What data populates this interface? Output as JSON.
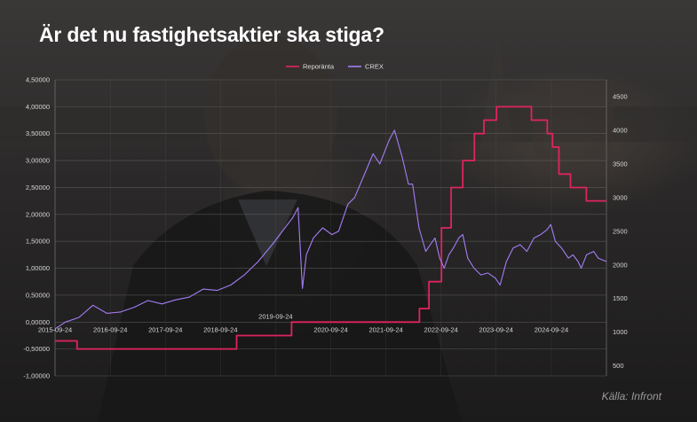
{
  "title": "Är det nu fastighetsaktier ska stiga?",
  "source": "Källa: Infront",
  "colors": {
    "background": "#1f1d1e",
    "repo": "#e0245e",
    "crex": "#a37ef5",
    "grid": "#6c6c6c",
    "text": "#ffffff"
  },
  "chart_data": {
    "type": "line",
    "legend_position": "top-center",
    "grid": true,
    "x_tick_labels": [
      "2015-09-24",
      "2016-09-24",
      "2017-09-24",
      "2018-09-24",
      "2019-09-24",
      "2020-09-24",
      "2021-09-24",
      "2022-09-24",
      "2023-09-24",
      "2024-09-24"
    ],
    "x_range": [
      "2015-09-24",
      "2025-09-24"
    ],
    "y_left": {
      "range": [
        -1.0,
        4.5
      ],
      "ticks": [
        "-1,00000",
        "-0,50000",
        "0,00000",
        "0,50000",
        "1,00000",
        "1,50000",
        "2,00000",
        "2,50000",
        "3,00000",
        "3,50000",
        "4,00000",
        "4,50000"
      ]
    },
    "y_right": {
      "range": [
        350,
        4750
      ],
      "ticks": [
        "500",
        "1000",
        "1500",
        "2000",
        "2500",
        "3000",
        "3500",
        "4000",
        "4500"
      ]
    },
    "series": [
      {
        "name": "Reporänta",
        "axis": "left",
        "step": true,
        "points": [
          [
            "2015-09-24",
            -0.35
          ],
          [
            "2016-02-17",
            -0.5
          ],
          [
            "2019-01-09",
            -0.25
          ],
          [
            "2020-01-08",
            0.0
          ],
          [
            "2022-05-04",
            0.25
          ],
          [
            "2022-07-06",
            0.75
          ],
          [
            "2022-09-27",
            1.75
          ],
          [
            "2022-11-30",
            2.5
          ],
          [
            "2023-02-15",
            3.0
          ],
          [
            "2023-05-03",
            3.5
          ],
          [
            "2023-07-05",
            3.75
          ],
          [
            "2023-09-27",
            4.0
          ],
          [
            "2024-05-15",
            3.75
          ],
          [
            "2024-08-28",
            3.5
          ],
          [
            "2024-10-02",
            3.25
          ],
          [
            "2024-11-13",
            2.75
          ],
          [
            "2025-01-29",
            2.5
          ],
          [
            "2025-05-14",
            2.25
          ],
          [
            "2025-09-24",
            2.25
          ]
        ]
      },
      {
        "name": "CREX",
        "axis": "right",
        "step": false,
        "points": [
          [
            "2015-09-24",
            1050
          ],
          [
            "2015-12-01",
            1150
          ],
          [
            "2016-03-01",
            1220
          ],
          [
            "2016-06-01",
            1400
          ],
          [
            "2016-09-01",
            1280
          ],
          [
            "2016-12-01",
            1300
          ],
          [
            "2017-03-01",
            1370
          ],
          [
            "2017-06-01",
            1470
          ],
          [
            "2017-09-01",
            1420
          ],
          [
            "2017-12-01",
            1480
          ],
          [
            "2018-03-01",
            1520
          ],
          [
            "2018-06-01",
            1640
          ],
          [
            "2018-09-01",
            1620
          ],
          [
            "2018-12-01",
            1700
          ],
          [
            "2019-03-01",
            1850
          ],
          [
            "2019-06-01",
            2050
          ],
          [
            "2019-09-01",
            2300
          ],
          [
            "2020-01-15",
            2700
          ],
          [
            "2020-02-20",
            2850
          ],
          [
            "2020-03-20",
            1650
          ],
          [
            "2020-04-15",
            2150
          ],
          [
            "2020-06-01",
            2400
          ],
          [
            "2020-08-01",
            2550
          ],
          [
            "2020-10-01",
            2450
          ],
          [
            "2020-11-15",
            2500
          ],
          [
            "2021-01-15",
            2900
          ],
          [
            "2021-03-01",
            3000
          ],
          [
            "2021-05-15",
            3400
          ],
          [
            "2021-07-01",
            3650
          ],
          [
            "2021-08-15",
            3500
          ],
          [
            "2021-10-15",
            3850
          ],
          [
            "2021-11-20",
            4000
          ],
          [
            "2022-01-10",
            3600
          ],
          [
            "2022-02-20",
            3200
          ],
          [
            "2022-03-20",
            3200
          ],
          [
            "2022-05-01",
            2550
          ],
          [
            "2022-06-15",
            2200
          ],
          [
            "2022-07-15",
            2300
          ],
          [
            "2022-08-15",
            2400
          ],
          [
            "2022-09-15",
            2100
          ],
          [
            "2022-10-15",
            1950
          ],
          [
            "2022-11-15",
            2150
          ],
          [
            "2022-12-15",
            2250
          ],
          [
            "2023-01-20",
            2400
          ],
          [
            "2023-02-15",
            2450
          ],
          [
            "2023-03-20",
            2100
          ],
          [
            "2023-05-01",
            1950
          ],
          [
            "2023-06-15",
            1850
          ],
          [
            "2023-08-01",
            1880
          ],
          [
            "2023-09-20",
            1800
          ],
          [
            "2023-10-20",
            1700
          ],
          [
            "2023-12-01",
            2050
          ],
          [
            "2024-01-15",
            2250
          ],
          [
            "2024-03-01",
            2300
          ],
          [
            "2024-04-15",
            2200
          ],
          [
            "2024-06-01",
            2400
          ],
          [
            "2024-07-15",
            2450
          ],
          [
            "2024-08-25",
            2520
          ],
          [
            "2024-09-20",
            2600
          ],
          [
            "2024-10-20",
            2350
          ],
          [
            "2024-12-01",
            2250
          ],
          [
            "2025-01-15",
            2100
          ],
          [
            "2025-02-15",
            2150
          ],
          [
            "2025-03-20",
            2050
          ],
          [
            "2025-04-10",
            1950
          ],
          [
            "2025-05-15",
            2150
          ],
          [
            "2025-07-01",
            2200
          ],
          [
            "2025-08-01",
            2100
          ],
          [
            "2025-09-24",
            2050
          ]
        ]
      }
    ]
  }
}
